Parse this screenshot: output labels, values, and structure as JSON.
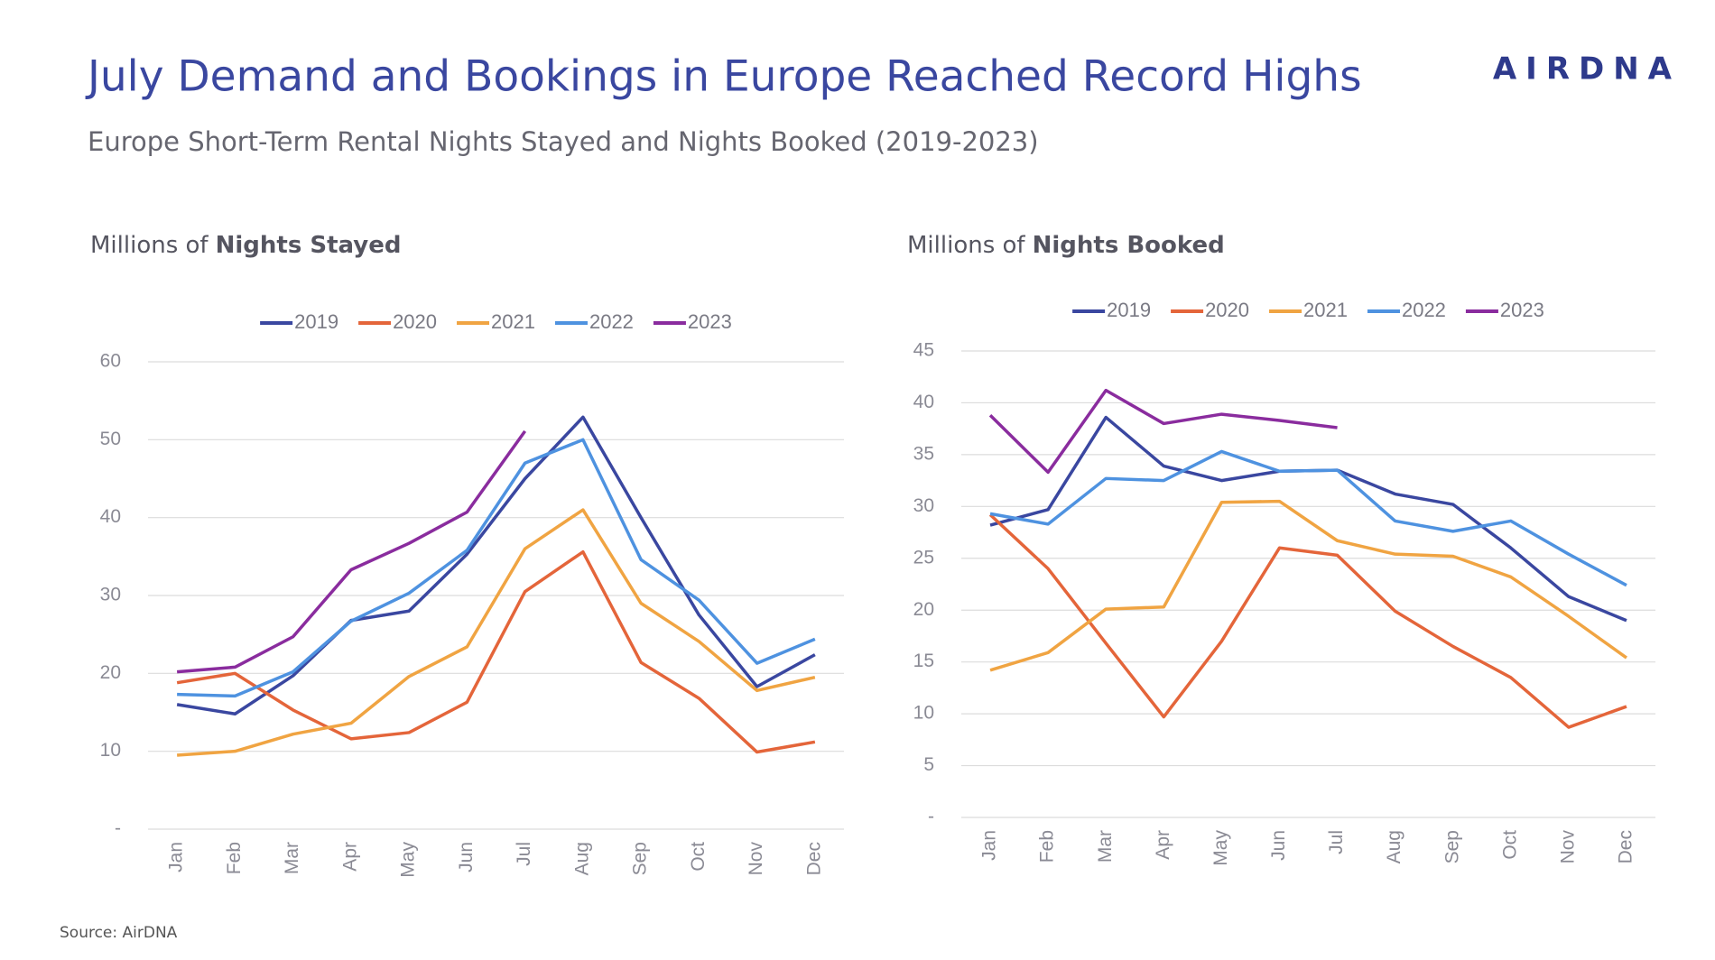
{
  "header": {
    "title": "July Demand and Bookings in Europe Reached Record Highs",
    "subtitle": "Europe Short-Term Rental Nights Stayed and Nights Booked (2019-2023)",
    "logo": "AIRDNA"
  },
  "source": "Source: AirDNA",
  "chart_data": [
    {
      "type": "line",
      "title_lead": "Millions of",
      "title_bold": "Nights Stayed",
      "categories": [
        "Jan",
        "Feb",
        "Mar",
        "Apr",
        "May",
        "Jun",
        "Jul",
        "Aug",
        "Sep",
        "Oct",
        "Nov",
        "Dec"
      ],
      "ylim": [
        0,
        60
      ],
      "yticks": [
        {
          "value": 0,
          "label": "-"
        },
        10,
        20,
        30,
        40,
        50,
        60
      ],
      "grid": true,
      "legend": "top",
      "series": [
        {
          "name": "2019",
          "color": "#3a47a0",
          "values": [
            16,
            14.8,
            19.7,
            26.8,
            28,
            35.3,
            45,
            52.9,
            40,
            27.5,
            18.3,
            22.4
          ]
        },
        {
          "name": "2020",
          "color": "#e4653a",
          "values": [
            18.8,
            20,
            15.3,
            11.6,
            12.4,
            16.3,
            30.5,
            35.6,
            21.4,
            16.8,
            9.9,
            11.2
          ]
        },
        {
          "name": "2021",
          "color": "#f0a442",
          "values": [
            9.5,
            10,
            12.2,
            13.6,
            19.6,
            23.4,
            36,
            41,
            29,
            24.1,
            17.8,
            19.5
          ]
        },
        {
          "name": "2022",
          "color": "#4e92e0",
          "values": [
            17.3,
            17.1,
            20.2,
            26.7,
            30.3,
            35.8,
            47,
            50,
            34.6,
            29.4,
            21.3,
            24.4
          ]
        },
        {
          "name": "2023",
          "color": "#8a2c9e",
          "values": [
            20.2,
            20.8,
            24.7,
            33.3,
            36.7,
            40.7,
            51.1,
            null,
            null,
            null,
            null,
            null
          ]
        }
      ]
    },
    {
      "type": "line",
      "title_lead": "Millions of",
      "title_bold": "Nights Booked",
      "categories": [
        "Jan",
        "Feb",
        "Mar",
        "Apr",
        "May",
        "Jun",
        "Jul",
        "Aug",
        "Sep",
        "Oct",
        "Nov",
        "Dec"
      ],
      "ylim": [
        0,
        45
      ],
      "yticks": [
        {
          "value": 0,
          "label": "-"
        },
        5,
        10,
        15,
        20,
        25,
        30,
        35,
        40,
        45
      ],
      "grid": true,
      "legend": "top",
      "series": [
        {
          "name": "2019",
          "color": "#3a47a0",
          "values": [
            28.2,
            29.7,
            38.6,
            33.9,
            32.5,
            33.4,
            33.5,
            31.2,
            30.2,
            26,
            21.3,
            19
          ]
        },
        {
          "name": "2020",
          "color": "#e4653a",
          "values": [
            29.2,
            24,
            16.8,
            9.7,
            17,
            26,
            25.3,
            19.9,
            16.5,
            13.5,
            8.7,
            10.7
          ]
        },
        {
          "name": "2021",
          "color": "#f0a442",
          "values": [
            14.2,
            15.9,
            20.1,
            20.3,
            30.4,
            30.5,
            26.7,
            25.4,
            25.2,
            23.2,
            19.4,
            15.4
          ]
        },
        {
          "name": "2022",
          "color": "#4e92e0",
          "values": [
            29.3,
            28.3,
            32.7,
            32.5,
            35.3,
            33.4,
            33.5,
            28.6,
            27.6,
            28.6,
            25.4,
            22.4
          ]
        },
        {
          "name": "2023",
          "color": "#8a2c9e",
          "values": [
            38.8,
            33.3,
            41.2,
            38,
            38.9,
            38.3,
            37.6,
            null,
            null,
            null,
            null,
            null
          ]
        }
      ]
    }
  ]
}
